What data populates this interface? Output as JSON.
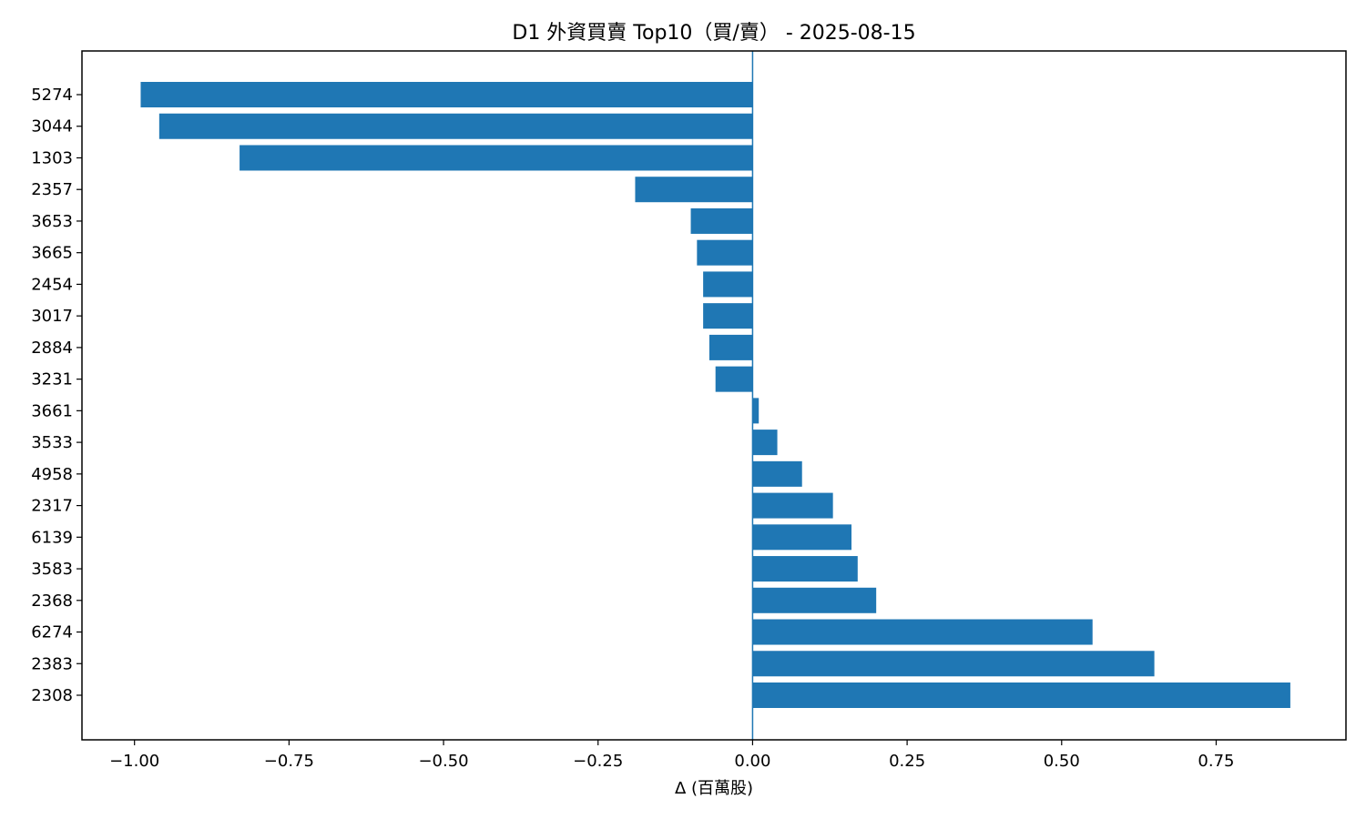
{
  "chart_data": {
    "type": "bar",
    "orientation": "horizontal",
    "title": "D1 外資買賣 Top10（買/賣） - 2025-08-15",
    "xlabel": "Δ (百萬股)",
    "ylabel": "",
    "xlim": [
      -1.085,
      0.96
    ],
    "xticks": [
      -1.0,
      -0.75,
      -0.5,
      -0.25,
      0.0,
      0.25,
      0.5,
      0.75
    ],
    "xtick_labels": [
      "−1.00",
      "−0.75",
      "−0.50",
      "−0.25",
      "0.00",
      "0.25",
      "0.50",
      "0.75"
    ],
    "grid": false,
    "legend": false,
    "zero_line": true,
    "bar_color": "#1f77b4",
    "categories": [
      "5274",
      "3044",
      "1303",
      "2357",
      "3653",
      "3665",
      "2454",
      "3017",
      "2884",
      "3231",
      "3661",
      "3533",
      "4958",
      "2317",
      "6139",
      "3583",
      "2368",
      "6274",
      "2383",
      "2308"
    ],
    "values": [
      -0.99,
      -0.96,
      -0.83,
      -0.19,
      -0.1,
      -0.09,
      -0.08,
      -0.08,
      -0.07,
      -0.06,
      0.01,
      0.04,
      0.08,
      0.13,
      0.16,
      0.17,
      0.2,
      0.55,
      0.65,
      0.87
    ]
  }
}
